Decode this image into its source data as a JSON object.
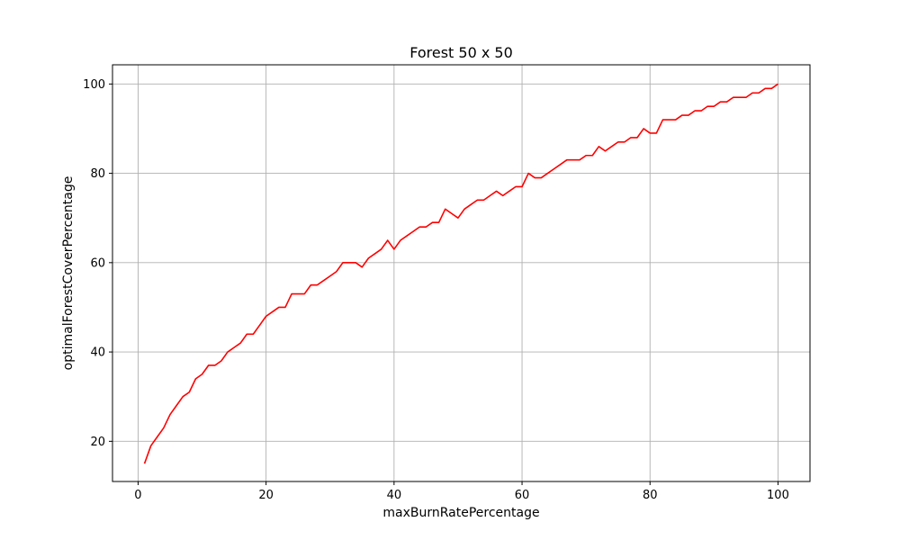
{
  "chart_data": {
    "type": "line",
    "title": "Forest 50 x 50",
    "xlabel": "maxBurnRatePercentage",
    "ylabel": "optimalForestCoverPercentage",
    "xlim": [
      -4,
      105
    ],
    "ylim": [
      11,
      104.3
    ],
    "xticks": [
      0,
      20,
      40,
      60,
      80,
      100
    ],
    "yticks": [
      20,
      40,
      60,
      80,
      100
    ],
    "grid": true,
    "legend": "none",
    "series": [
      {
        "color": "#ff0000",
        "x": [
          1,
          2,
          3,
          4,
          5,
          6,
          7,
          8,
          9,
          10,
          11,
          12,
          13,
          14,
          15,
          16,
          17,
          18,
          19,
          20,
          21,
          22,
          23,
          24,
          25,
          26,
          27,
          28,
          29,
          30,
          31,
          32,
          33,
          34,
          35,
          36,
          37,
          38,
          39,
          40,
          41,
          42,
          43,
          44,
          45,
          46,
          47,
          48,
          49,
          50,
          51,
          52,
          53,
          54,
          55,
          56,
          57,
          58,
          59,
          60,
          61,
          62,
          63,
          64,
          65,
          66,
          67,
          68,
          69,
          70,
          71,
          72,
          73,
          74,
          75,
          76,
          77,
          78,
          79,
          80,
          81,
          82,
          83,
          84,
          85,
          86,
          87,
          88,
          89,
          90,
          91,
          92,
          93,
          94,
          95,
          96,
          97,
          98,
          99,
          100
        ],
        "y": [
          15,
          19,
          21,
          23,
          26,
          28,
          30,
          31,
          34,
          35,
          37,
          37,
          38,
          40,
          41,
          42,
          44,
          44,
          46,
          48,
          49,
          50,
          50,
          53,
          53,
          53,
          55,
          55,
          56,
          57,
          58,
          60,
          60,
          60,
          59,
          61,
          62,
          63,
          65,
          63,
          65,
          66,
          67,
          68,
          68,
          69,
          69,
          72,
          71,
          70,
          72,
          73,
          74,
          74,
          75,
          76,
          75,
          76,
          77,
          77,
          80,
          79,
          79,
          80,
          81,
          82,
          83,
          83,
          83,
          84,
          84,
          86,
          85,
          86,
          87,
          87,
          88,
          88,
          90,
          89,
          89,
          92,
          92,
          92,
          93,
          93,
          94,
          94,
          95,
          95,
          96,
          96,
          97,
          97,
          97,
          98,
          98,
          99,
          99,
          100
        ]
      }
    ]
  }
}
